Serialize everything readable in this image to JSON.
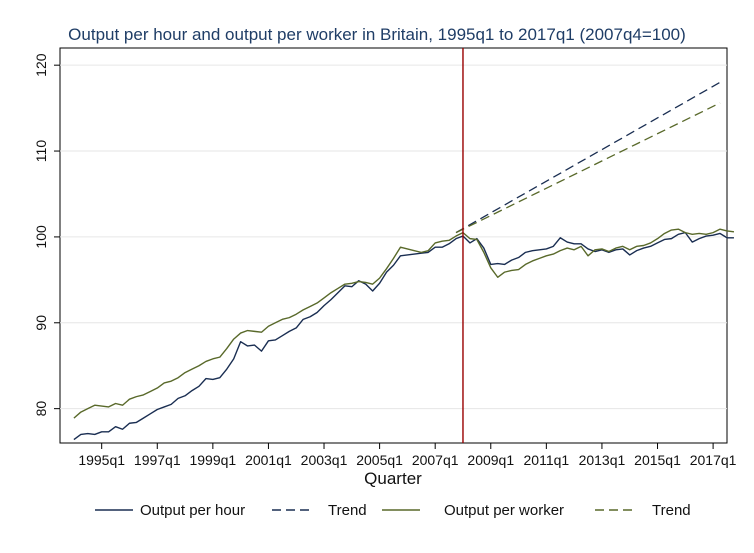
{
  "chart_data": {
    "type": "line",
    "title": "Output per hour and output per worker in Britain, 1995q1 to 2017q1 (2007q4=100)",
    "xlabel": "Quarter",
    "ylabel": "",
    "x_start": "1994q1",
    "x_end": "2017q2",
    "xlim": [
      "1993q3",
      "2017q3"
    ],
    "ylim": [
      76,
      122
    ],
    "x_ticks": [
      "1995q1",
      "1997q1",
      "1999q1",
      "2001q1",
      "2003q1",
      "2005q1",
      "2007q1",
      "2009q1",
      "2011q1",
      "2013q1",
      "2015q1",
      "2017q1"
    ],
    "y_ticks": [
      80,
      90,
      100,
      110,
      120
    ],
    "grid": "horizontal",
    "legend_position": "bottom",
    "reference_line": {
      "x": "2008q1",
      "color": "#990000"
    },
    "series": [
      {
        "name": "Output per hour",
        "style": "solid",
        "color": "#1a2e52",
        "values": [
          76.4,
          77.0,
          77.1,
          77.0,
          77.3,
          77.3,
          77.9,
          77.6,
          78.3,
          78.4,
          78.9,
          79.4,
          79.9,
          80.2,
          80.5,
          81.2,
          81.5,
          82.1,
          82.6,
          83.5,
          83.4,
          83.6,
          84.6,
          85.8,
          87.8,
          87.3,
          87.4,
          86.7,
          87.9,
          88.0,
          88.5,
          89.0,
          89.4,
          90.4,
          90.7,
          91.2,
          92.0,
          92.7,
          93.5,
          94.3,
          94.2,
          94.9,
          94.5,
          93.7,
          94.6,
          95.9,
          96.7,
          97.8,
          97.9,
          98.0,
          98.1,
          98.2,
          98.8,
          98.8,
          99.2,
          99.8,
          100.1,
          99.3,
          99.8,
          98.7,
          96.8,
          96.9,
          96.8,
          97.3,
          97.6,
          98.2,
          98.4,
          98.5,
          98.6,
          98.9,
          99.9,
          99.4,
          99.2,
          99.2,
          98.6,
          98.3,
          98.5,
          98.2,
          98.5,
          98.6,
          97.9,
          98.4,
          98.7,
          98.9,
          99.3,
          99.7,
          99.8,
          100.3,
          100.5,
          99.4,
          99.8,
          100.1,
          100.2,
          100.4,
          99.9,
          99.9
        ]
      },
      {
        "name": "Trend",
        "style": "dash",
        "color": "#1a2e52",
        "values": [
          100.5,
          118.0
        ],
        "x": [
          "2007q4",
          "2017q2"
        ]
      },
      {
        "name": "Output per worker",
        "style": "solid",
        "color": "#59692a",
        "values": [
          78.9,
          79.6,
          80.0,
          80.4,
          80.3,
          80.2,
          80.6,
          80.4,
          81.1,
          81.4,
          81.6,
          82.0,
          82.4,
          83.0,
          83.2,
          83.6,
          84.2,
          84.6,
          85.0,
          85.5,
          85.8,
          86.0,
          87.0,
          88.1,
          88.8,
          89.1,
          89.0,
          88.9,
          89.6,
          90.0,
          90.4,
          90.6,
          91.0,
          91.5,
          91.9,
          92.3,
          92.9,
          93.5,
          94.0,
          94.5,
          94.6,
          94.8,
          94.7,
          94.5,
          95.2,
          96.3,
          97.5,
          98.8,
          98.6,
          98.4,
          98.2,
          98.4,
          99.3,
          99.5,
          99.6,
          100.1,
          100.5,
          99.8,
          99.7,
          98.2,
          96.4,
          95.3,
          95.9,
          96.1,
          96.2,
          96.8,
          97.2,
          97.5,
          97.8,
          98.0,
          98.4,
          98.7,
          98.5,
          98.9,
          97.8,
          98.5,
          98.6,
          98.3,
          98.7,
          98.9,
          98.5,
          98.9,
          99.0,
          99.3,
          99.8,
          100.4,
          100.8,
          100.9,
          100.5,
          100.3,
          100.4,
          100.3,
          100.5,
          100.9,
          100.7,
          100.6
        ]
      },
      {
        "name": "Trend",
        "style": "dash",
        "color": "#59692a",
        "values": [
          100.5,
          115.6
        ],
        "x": [
          "2007q4",
          "2017q2"
        ]
      }
    ]
  }
}
